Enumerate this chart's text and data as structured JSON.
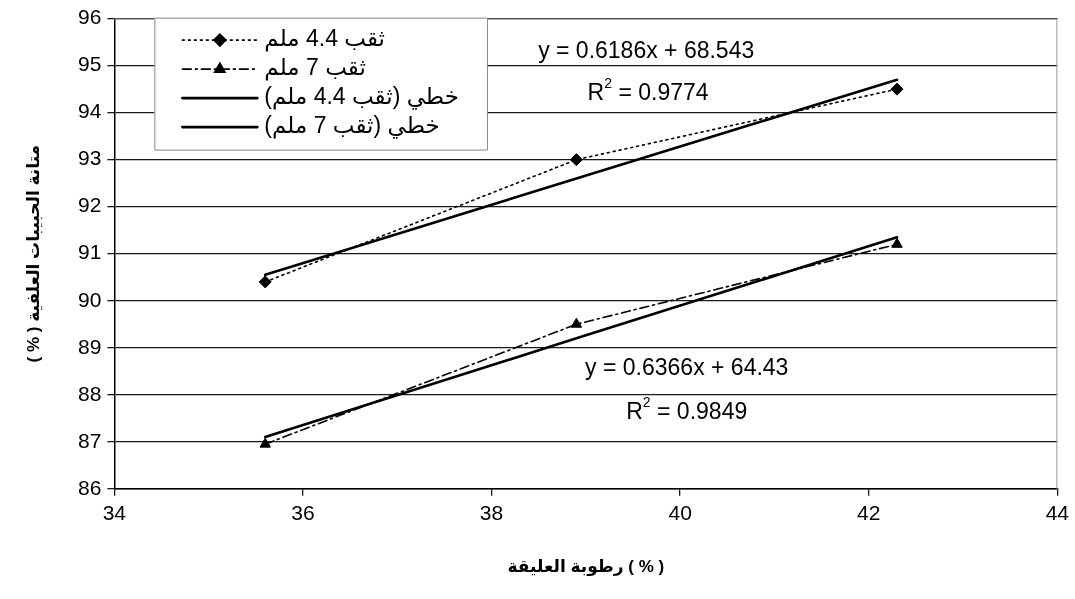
{
  "chart_data": {
    "type": "line",
    "xlabel": "رطوبة العليقة ( % )",
    "ylabel": "متانة الحبيبات العلفية ( % )",
    "x": [
      35.6,
      38.9,
      42.3
    ],
    "series": [
      {
        "name": "ثقب 4.4 ملم",
        "color": "#000000",
        "values": [
          90.4,
          93.0,
          94.5
        ],
        "marker": "diamond",
        "line_style": "dotted"
      },
      {
        "name": "ثقب 7 ملم",
        "color": "#000000",
        "values": [
          86.95,
          89.5,
          91.2
        ],
        "marker": "triangle",
        "line_style": "dashed"
      },
      {
        "name": "خطي (ثقب 4.4 ملم)",
        "type": "line",
        "color": "#000000",
        "values": [
          90.55,
          92.6,
          94.7
        ],
        "marker": "none",
        "line_style": "solid"
      },
      {
        "name": "خطي (ثقب 7 ملم)",
        "type": "line",
        "color": "#000000",
        "values": [
          87.1,
          89.2,
          91.35
        ],
        "marker": "none",
        "line_style": "solid"
      }
    ],
    "xlim": [
      34,
      44
    ],
    "xticks": [
      34,
      36,
      38,
      40,
      42,
      44
    ],
    "ylim": [
      86,
      96
    ],
    "yticks": [
      86,
      87,
      88,
      89,
      90,
      91,
      92,
      93,
      94,
      95,
      96
    ],
    "grid": "y",
    "legend": "top left",
    "annotations": [
      "y = 0.6186x + 68.543",
      "R$^{2}$ = 0.9774",
      "y = 0.6366x + 64.43",
      "R$^{2}$ = 0.9849"
    ]
  }
}
